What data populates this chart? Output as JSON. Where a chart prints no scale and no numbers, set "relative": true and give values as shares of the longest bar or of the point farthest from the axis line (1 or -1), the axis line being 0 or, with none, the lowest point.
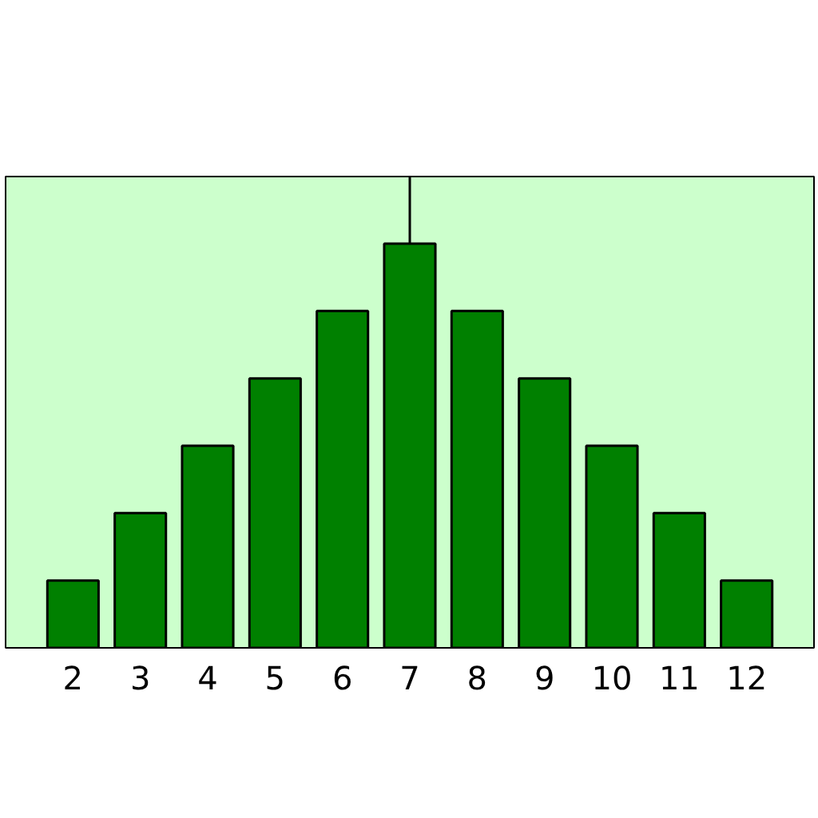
{
  "chart_data": {
    "type": "bar",
    "relative": true,
    "categories": [
      "2",
      "3",
      "4",
      "5",
      "6",
      "7",
      "8",
      "9",
      "10",
      "11",
      "12"
    ],
    "values": [
      0.1667,
      0.3333,
      0.5,
      0.6667,
      0.8333,
      1,
      0.8333,
      0.6667,
      0.5,
      0.3333,
      0.1667
    ],
    "color": "#008000",
    "ref_lines": [
      {
        "axis": "x",
        "value": "7",
        "color": "#000000"
      }
    ]
  }
}
